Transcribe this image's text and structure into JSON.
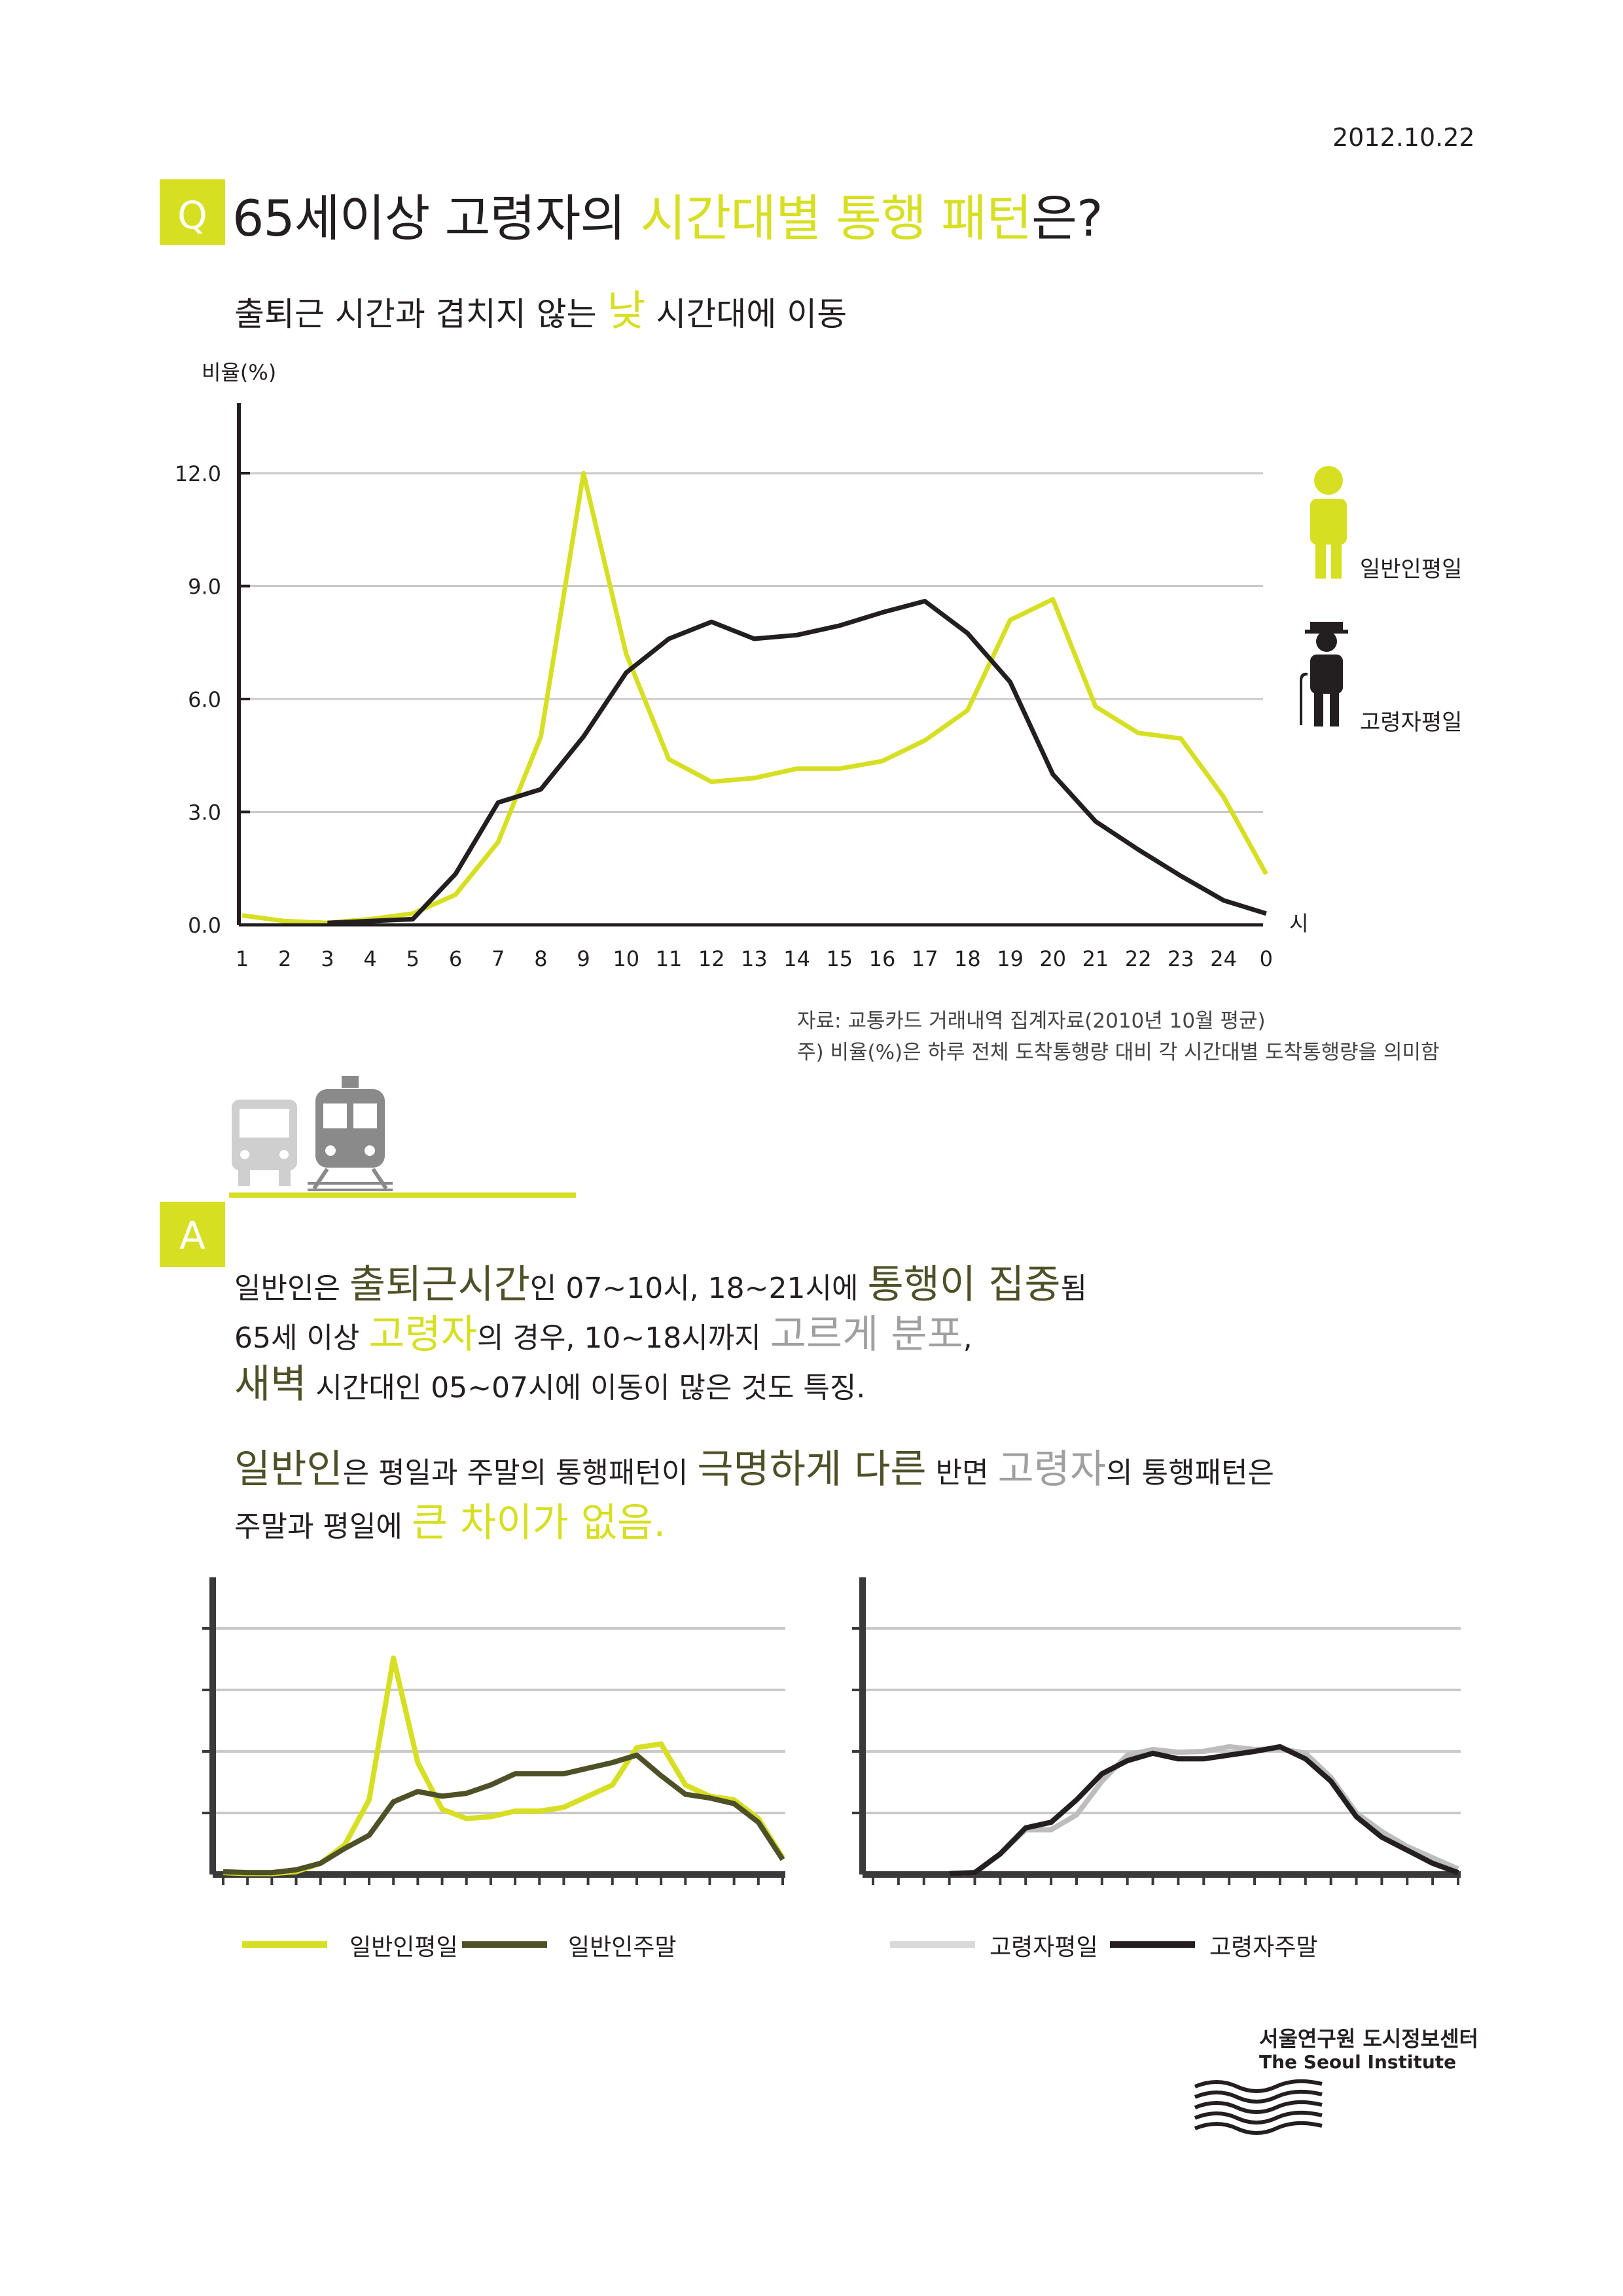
{
  "date": "2012.10.22",
  "question": {
    "badge": "Q",
    "title_pre": "65세이상 고령자의 ",
    "title_hl": "시간대별 통행 패턴",
    "title_post": "은?",
    "subtitle_pre": "출퇴근 시간과 겹치지 않는 ",
    "subtitle_hl": "낮",
    "subtitle_post": " 시간대에 이동"
  },
  "colors": {
    "accent": "#d7df23",
    "elderly": "#231f20",
    "general_weekend": "#4e5127",
    "elderly_weekday_light": "#bdbdbd"
  },
  "icons": [
    "person-icon",
    "elderly-person-icon",
    "bus-icon",
    "train-icon",
    "seoul-institute-logo-icon"
  ],
  "chart_data": [
    {
      "type": "line",
      "ylabel": "비율(%)",
      "xlabel": "시",
      "ylim": [
        0,
        12.0
      ],
      "yticks": [
        "0.0",
        "3.0",
        "6.0",
        "9.0",
        "12.0"
      ],
      "x": [
        "1",
        "2",
        "3",
        "4",
        "5",
        "6",
        "7",
        "8",
        "9",
        "10",
        "11",
        "12",
        "13",
        "14",
        "15",
        "16",
        "17",
        "18",
        "19",
        "20",
        "21",
        "22",
        "23",
        "24",
        "0"
      ],
      "grid": true,
      "legend_position": "right",
      "series": [
        {
          "name": "일반인평일",
          "color": "#d7df23",
          "values": [
            0.25,
            0.1,
            0.05,
            0.15,
            0.3,
            0.8,
            2.2,
            5.0,
            12.0,
            7.2,
            4.4,
            3.8,
            3.9,
            4.15,
            4.15,
            4.35,
            4.9,
            5.7,
            8.1,
            8.65,
            5.8,
            5.1,
            4.95,
            3.4,
            1.35
          ]
        },
        {
          "name": "고령자평일",
          "color": "#231f20",
          "values": [
            null,
            null,
            0.05,
            0.1,
            0.15,
            1.35,
            3.25,
            3.6,
            5.0,
            6.7,
            7.6,
            8.05,
            7.6,
            7.7,
            7.95,
            8.3,
            8.6,
            7.75,
            6.45,
            4.0,
            2.75,
            2.0,
            1.3,
            0.65,
            0.3
          ]
        }
      ]
    },
    {
      "type": "line",
      "ylim": [
        0,
        12.0
      ],
      "grid": true,
      "legend_position": "bottom",
      "series": [
        {
          "name": "일반인평일",
          "color": "#d7df23",
          "values": [
            0.1,
            0.05,
            0.05,
            0.15,
            0.6,
            1.6,
            4.0,
            11.6,
            6.0,
            3.5,
            3.0,
            3.1,
            3.4,
            3.4,
            3.6,
            4.2,
            4.8,
            6.8,
            7.0,
            4.8,
            4.2,
            4.0,
            3.0,
            0.9
          ]
        },
        {
          "name": "일반인주말",
          "color": "#4e5127",
          "values": [
            0.15,
            0.1,
            0.1,
            0.25,
            0.6,
            1.4,
            2.1,
            3.9,
            4.45,
            4.2,
            4.35,
            4.8,
            5.4,
            5.4,
            5.4,
            5.7,
            6.0,
            6.4,
            5.3,
            4.3,
            4.1,
            3.8,
            2.8,
            0.8
          ]
        }
      ]
    },
    {
      "type": "line",
      "ylim": [
        0,
        12.0
      ],
      "grid": true,
      "legend_position": "bottom",
      "series": [
        {
          "name": "고령자평일",
          "color": "#bdbdbd",
          "values": [
            null,
            null,
            null,
            0.05,
            0.1,
            1.1,
            2.4,
            2.4,
            3.2,
            5.0,
            6.4,
            6.7,
            6.55,
            6.6,
            6.85,
            6.7,
            6.75,
            6.5,
            5.2,
            3.3,
            2.3,
            1.5,
            0.9,
            0.3
          ]
        },
        {
          "name": "고령자주말",
          "color": "#231f20",
          "values": [
            null,
            null,
            null,
            0.05,
            0.1,
            1.1,
            2.5,
            2.8,
            4.0,
            5.4,
            6.1,
            6.5,
            6.2,
            6.2,
            6.4,
            6.6,
            6.85,
            6.2,
            5.0,
            3.1,
            2.0,
            1.3,
            0.6,
            0.1
          ]
        }
      ]
    }
  ],
  "source": {
    "line1": "자료: 교통카드 거래내역 집계자료(2010년 10월 평균)",
    "line2": "주) 비율(%)은 하루 전체 도착통행량 대비 각 시간대별 도착통행량을 의미함"
  },
  "answer": {
    "badge": "A",
    "l1a": "일반인은 ",
    "l1b": "출퇴근시간",
    "l1c": "인 07~10시, 18~21시에 ",
    "l1d": "통행이 집중",
    "l1e": "됨",
    "l2a": "65세 이상 ",
    "l2b": "고령자",
    "l2c": "의 경우, 10~18시까지 ",
    "l2d": "고르게 분포",
    "l2e": ",",
    "l3a": "새벽",
    "l3b": " 시간대인 05~07시에 이동이 많은 것도 특징.",
    "l4a": "일반인",
    "l4b": "은 평일과 주말의 통행패턴이 ",
    "l4c": "극명하게 다른",
    "l4d": " 반면 ",
    "l4e": "고령자",
    "l4f": "의 통행패턴은",
    "l5a": "주말과 평일에 ",
    "l5b": "큰 차이가 없음."
  },
  "institute": {
    "name_ko": "서울연구원 도시정보센터",
    "name_en": "The Seoul Institute"
  }
}
